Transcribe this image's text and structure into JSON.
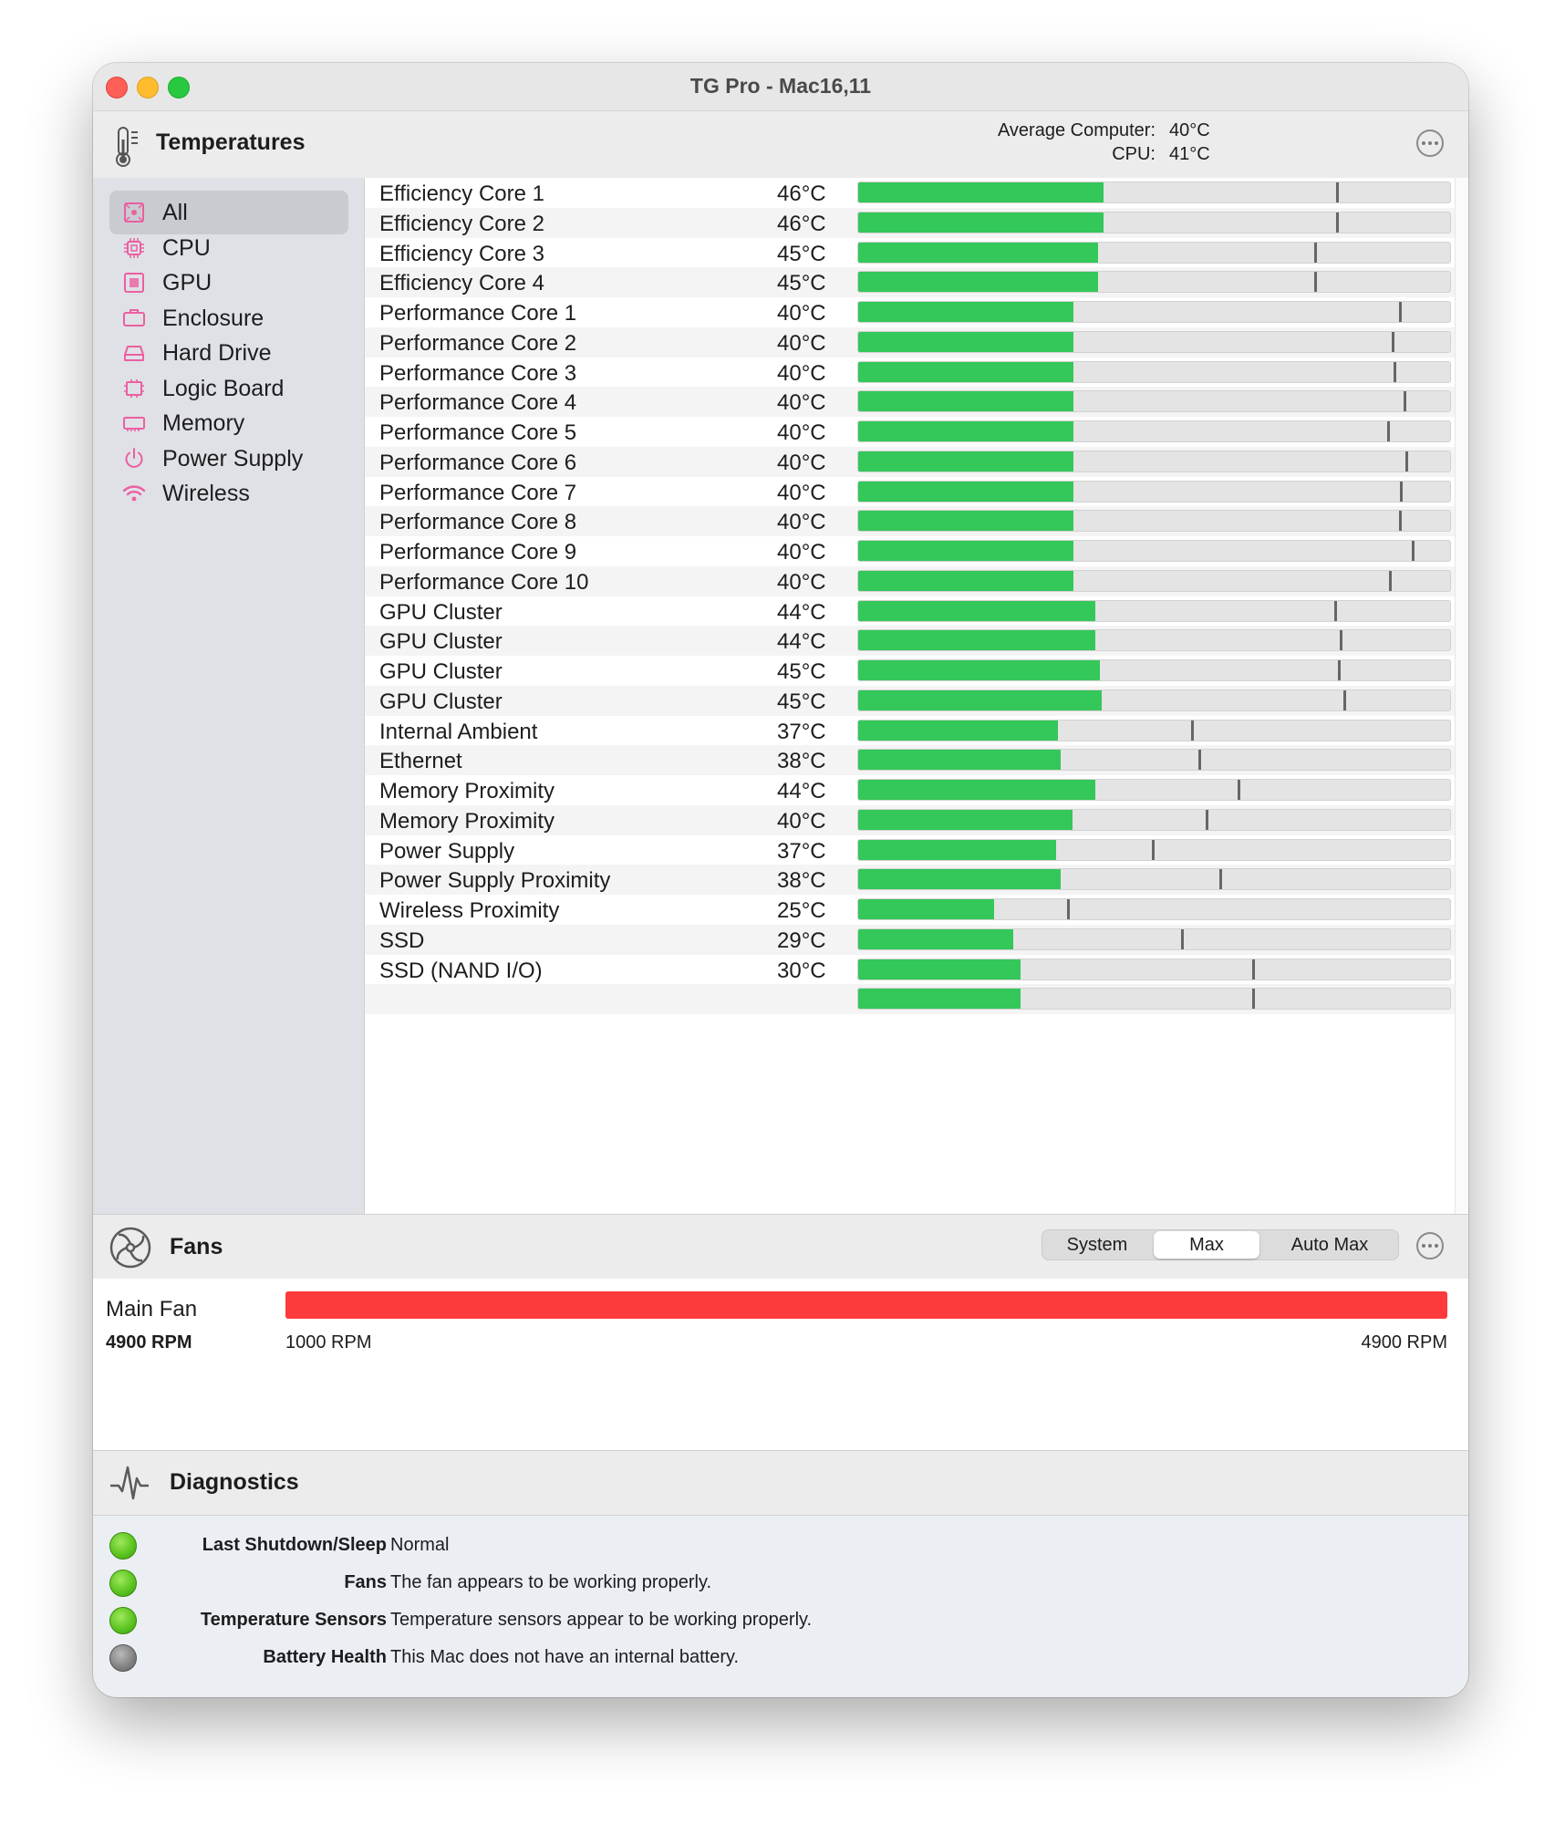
{
  "window": {
    "title": "TG Pro - Mac16,11"
  },
  "temperatures": {
    "title": "Temperatures",
    "average_label": "Average Computer:",
    "average_value": "40°C",
    "cpu_label": "CPU:",
    "cpu_value": "41°C"
  },
  "sidebar": {
    "items": [
      {
        "label": "All",
        "icon": "chip-all-icon",
        "selected": true
      },
      {
        "label": "CPU",
        "icon": "cpu-icon"
      },
      {
        "label": "GPU",
        "icon": "gpu-icon"
      },
      {
        "label": "Enclosure",
        "icon": "enclosure-icon"
      },
      {
        "label": "Hard Drive",
        "icon": "hard-drive-icon"
      },
      {
        "label": "Logic Board",
        "icon": "logic-board-icon"
      },
      {
        "label": "Memory",
        "icon": "memory-icon"
      },
      {
        "label": "Power Supply",
        "icon": "power-icon"
      },
      {
        "label": "Wireless",
        "icon": "wifi-icon"
      }
    ]
  },
  "sensors": [
    {
      "name": "Efficiency Core 1",
      "value": "46°C",
      "level": 0.415,
      "max_marker": 0.808
    },
    {
      "name": "Efficiency Core 2",
      "value": "46°C",
      "level": 0.415,
      "max_marker": 0.808
    },
    {
      "name": "Efficiency Core 3",
      "value": "45°C",
      "level": 0.406,
      "max_marker": 0.771
    },
    {
      "name": "Efficiency Core 4",
      "value": "45°C",
      "level": 0.406,
      "max_marker": 0.771
    },
    {
      "name": "Performance Core 1",
      "value": "40°C",
      "level": 0.364,
      "max_marker": 0.914
    },
    {
      "name": "Performance Core 2",
      "value": "40°C",
      "level": 0.364,
      "max_marker": 0.902
    },
    {
      "name": "Performance Core 3",
      "value": "40°C",
      "level": 0.364,
      "max_marker": 0.904
    },
    {
      "name": "Performance Core 4",
      "value": "40°C",
      "level": 0.364,
      "max_marker": 0.922
    },
    {
      "name": "Performance Core 5",
      "value": "40°C",
      "level": 0.364,
      "max_marker": 0.894
    },
    {
      "name": "Performance Core 6",
      "value": "40°C",
      "level": 0.364,
      "max_marker": 0.925
    },
    {
      "name": "Performance Core 7",
      "value": "40°C",
      "level": 0.364,
      "max_marker": 0.916
    },
    {
      "name": "Performance Core 8",
      "value": "40°C",
      "level": 0.364,
      "max_marker": 0.914
    },
    {
      "name": "Performance Core 9",
      "value": "40°C",
      "level": 0.364,
      "max_marker": 0.935
    },
    {
      "name": "Performance Core 10",
      "value": "40°C",
      "level": 0.364,
      "max_marker": 0.896
    },
    {
      "name": "GPU Cluster",
      "value": "44°C",
      "level": 0.401,
      "max_marker": 0.804
    },
    {
      "name": "GPU Cluster",
      "value": "44°C",
      "level": 0.401,
      "max_marker": 0.814
    },
    {
      "name": "GPU Cluster",
      "value": "45°C",
      "level": 0.409,
      "max_marker": 0.81
    },
    {
      "name": "GPU Cluster",
      "value": "45°C",
      "level": 0.411,
      "max_marker": 0.82
    },
    {
      "name": "Internal Ambient",
      "value": "37°C",
      "level": 0.337,
      "max_marker": 0.563
    },
    {
      "name": "Ethernet",
      "value": "38°C",
      "level": 0.342,
      "max_marker": 0.575
    },
    {
      "name": "Memory Proximity",
      "value": "44°C",
      "level": 0.401,
      "max_marker": 0.641
    },
    {
      "name": "Memory Proximity",
      "value": "40°C",
      "level": 0.362,
      "max_marker": 0.587
    },
    {
      "name": "Power Supply",
      "value": "37°C",
      "level": 0.335,
      "max_marker": 0.496
    },
    {
      "name": "Power Supply Proximity",
      "value": "38°C",
      "level": 0.342,
      "max_marker": 0.61
    },
    {
      "name": "Wireless Proximity",
      "value": "25°C",
      "level": 0.229,
      "max_marker": 0.353
    },
    {
      "name": "SSD",
      "value": "29°C",
      "level": 0.262,
      "max_marker": 0.545
    },
    {
      "name": "SSD (NAND I/O)",
      "value": "30°C",
      "level": 0.274,
      "max_marker": 0.665
    },
    {
      "name": "",
      "value": "",
      "level": 0.274,
      "max_marker": 0.665
    }
  ],
  "fans": {
    "title": "Fans",
    "modes": [
      "System",
      "Max",
      "Auto Max"
    ],
    "active_mode": "Max",
    "main_fan": {
      "name": "Main Fan",
      "rpm": "4900 RPM",
      "min_label": "1000 RPM",
      "max_label": "4900 RPM",
      "level": 1.0
    }
  },
  "diagnostics": {
    "title": "Diagnostics",
    "items": [
      {
        "label": "Last Shutdown/Sleep",
        "text": "Normal",
        "status": "green"
      },
      {
        "label": "Fans",
        "text": "The fan appears to be working properly.",
        "status": "green"
      },
      {
        "label": "Temperature Sensors",
        "text": "Temperature sensors appear to be working properly.",
        "status": "green"
      },
      {
        "label": "Battery Health",
        "text": "This Mac does not have an internal battery.",
        "status": "gray"
      }
    ]
  },
  "colors": {
    "accent_pink": "#ec5fa0",
    "bar_green": "#34c759",
    "fan_red": "#fd3a3c"
  }
}
